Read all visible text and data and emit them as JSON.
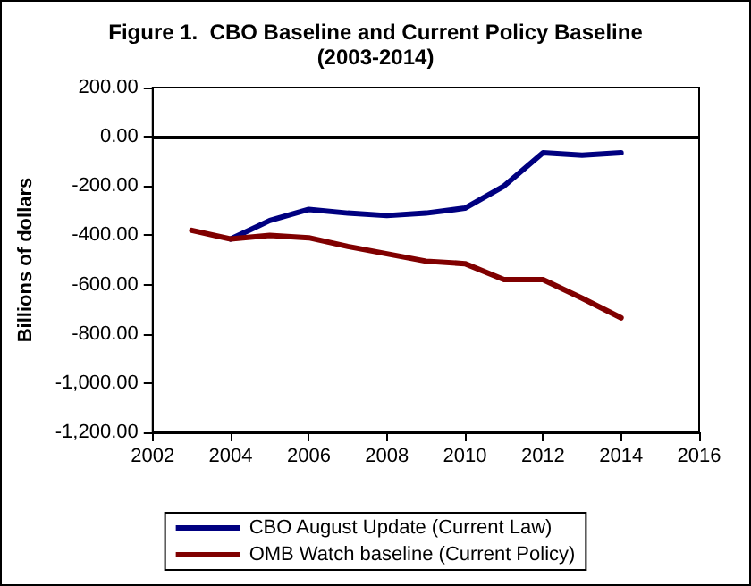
{
  "chart_data": {
    "type": "line",
    "title": "Figure 1.  CBO Baseline and Current Policy Baseline",
    "subtitle": "(2003-2014)",
    "ylabel": "Billions of dollars",
    "x": [
      2003,
      2004,
      2005,
      2006,
      2007,
      2008,
      2009,
      2010,
      2011,
      2012,
      2013,
      2014
    ],
    "series": [
      {
        "name": "CBO August Update (Current Law)",
        "color": "#000080",
        "values": [
          null,
          -415,
          -340,
          -295,
          -310,
          -320,
          -310,
          -290,
          -200,
          -65,
          -75,
          -65
        ]
      },
      {
        "name": "OMB Watch baseline (Current Policy)",
        "color": "#800000",
        "values": [
          -380,
          -415,
          -400,
          -410,
          -445,
          -475,
          -505,
          -515,
          -580,
          -580,
          -655,
          -735
        ]
      }
    ],
    "xlim": [
      2002,
      2016
    ],
    "xticks": [
      2002,
      2004,
      2006,
      2008,
      2010,
      2012,
      2014,
      2016
    ],
    "ylim": [
      -1200,
      200
    ],
    "yticks": [
      {
        "value": -1200,
        "label": "-1,200.00"
      },
      {
        "value": -1000,
        "label": "-1,000.00"
      },
      {
        "value": -800,
        "label": "-800.00"
      },
      {
        "value": -600,
        "label": "-600.00"
      },
      {
        "value": -400,
        "label": "-400.00"
      },
      {
        "value": -200,
        "label": "-200.00"
      },
      {
        "value": 0,
        "label": "0.00"
      },
      {
        "value": 200,
        "label": "200.00"
      }
    ],
    "ref_lines": [
      {
        "axis": "y",
        "value": 0,
        "color": "#000000"
      }
    ],
    "grid": false,
    "legend": "bottom",
    "marker": "none",
    "line_style": "solid"
  }
}
